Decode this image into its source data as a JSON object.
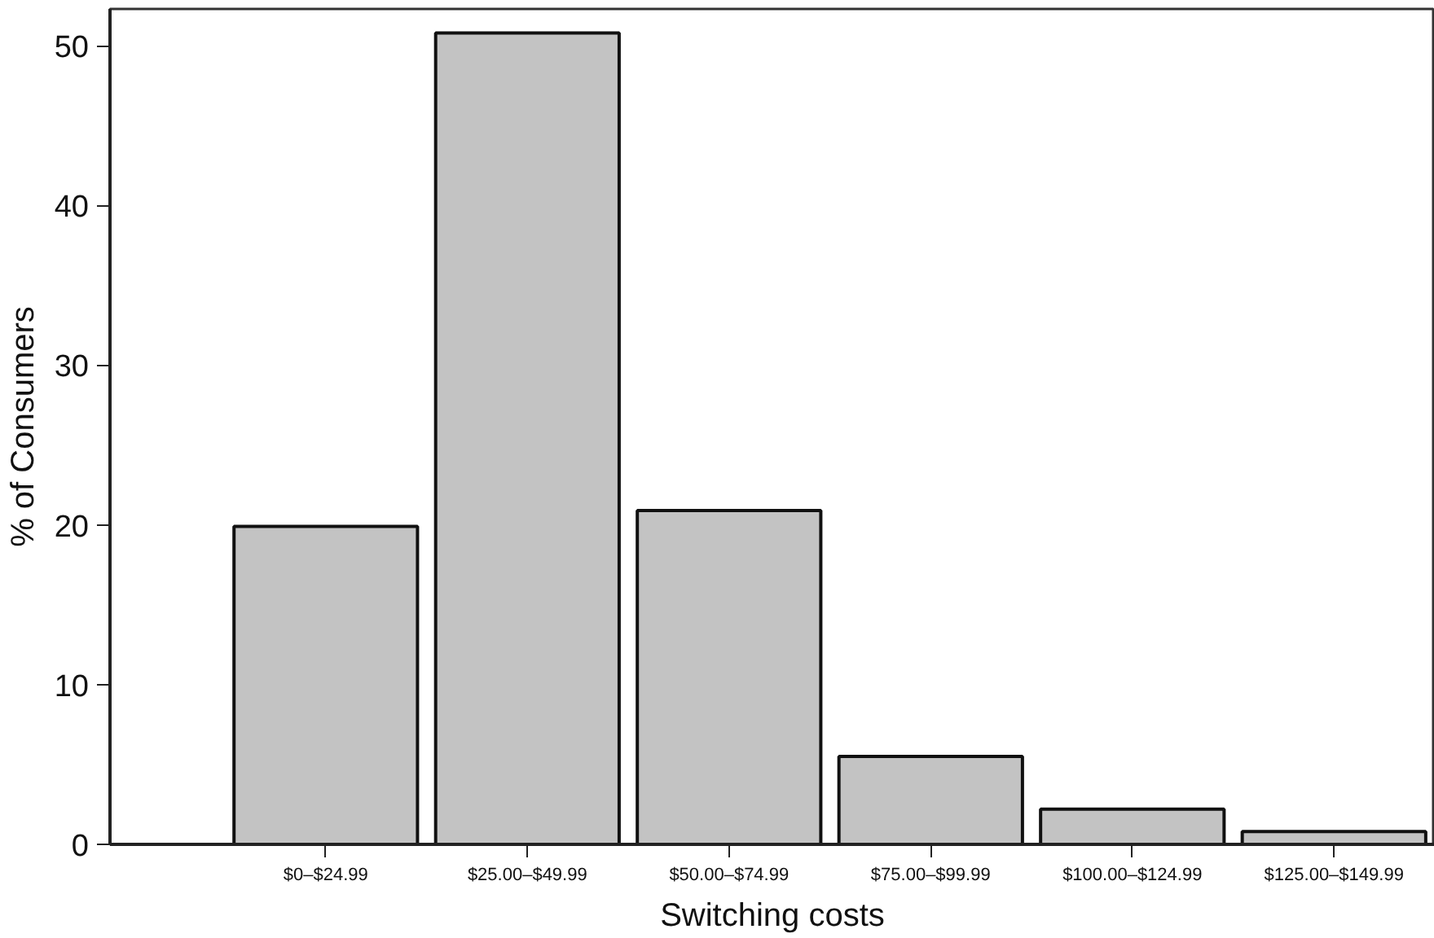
{
  "chart_data": {
    "type": "bar",
    "xlabel": "Switching costs",
    "ylabel": "% of Consumers",
    "categories": [
      "$0–$24.99",
      "$25.00–$49.99",
      "$50.00–$74.99",
      "$75.00–$99.99",
      "$100.00–$124.99",
      "$125.00–$149.99"
    ],
    "values": [
      19.9,
      50.8,
      20.9,
      5.5,
      2.2,
      0.8
    ],
    "color": "#c3c3c3",
    "ylim": [
      0,
      52.3
    ],
    "yticks": [
      0,
      10,
      20,
      30,
      40,
      50
    ],
    "grid": false
  }
}
